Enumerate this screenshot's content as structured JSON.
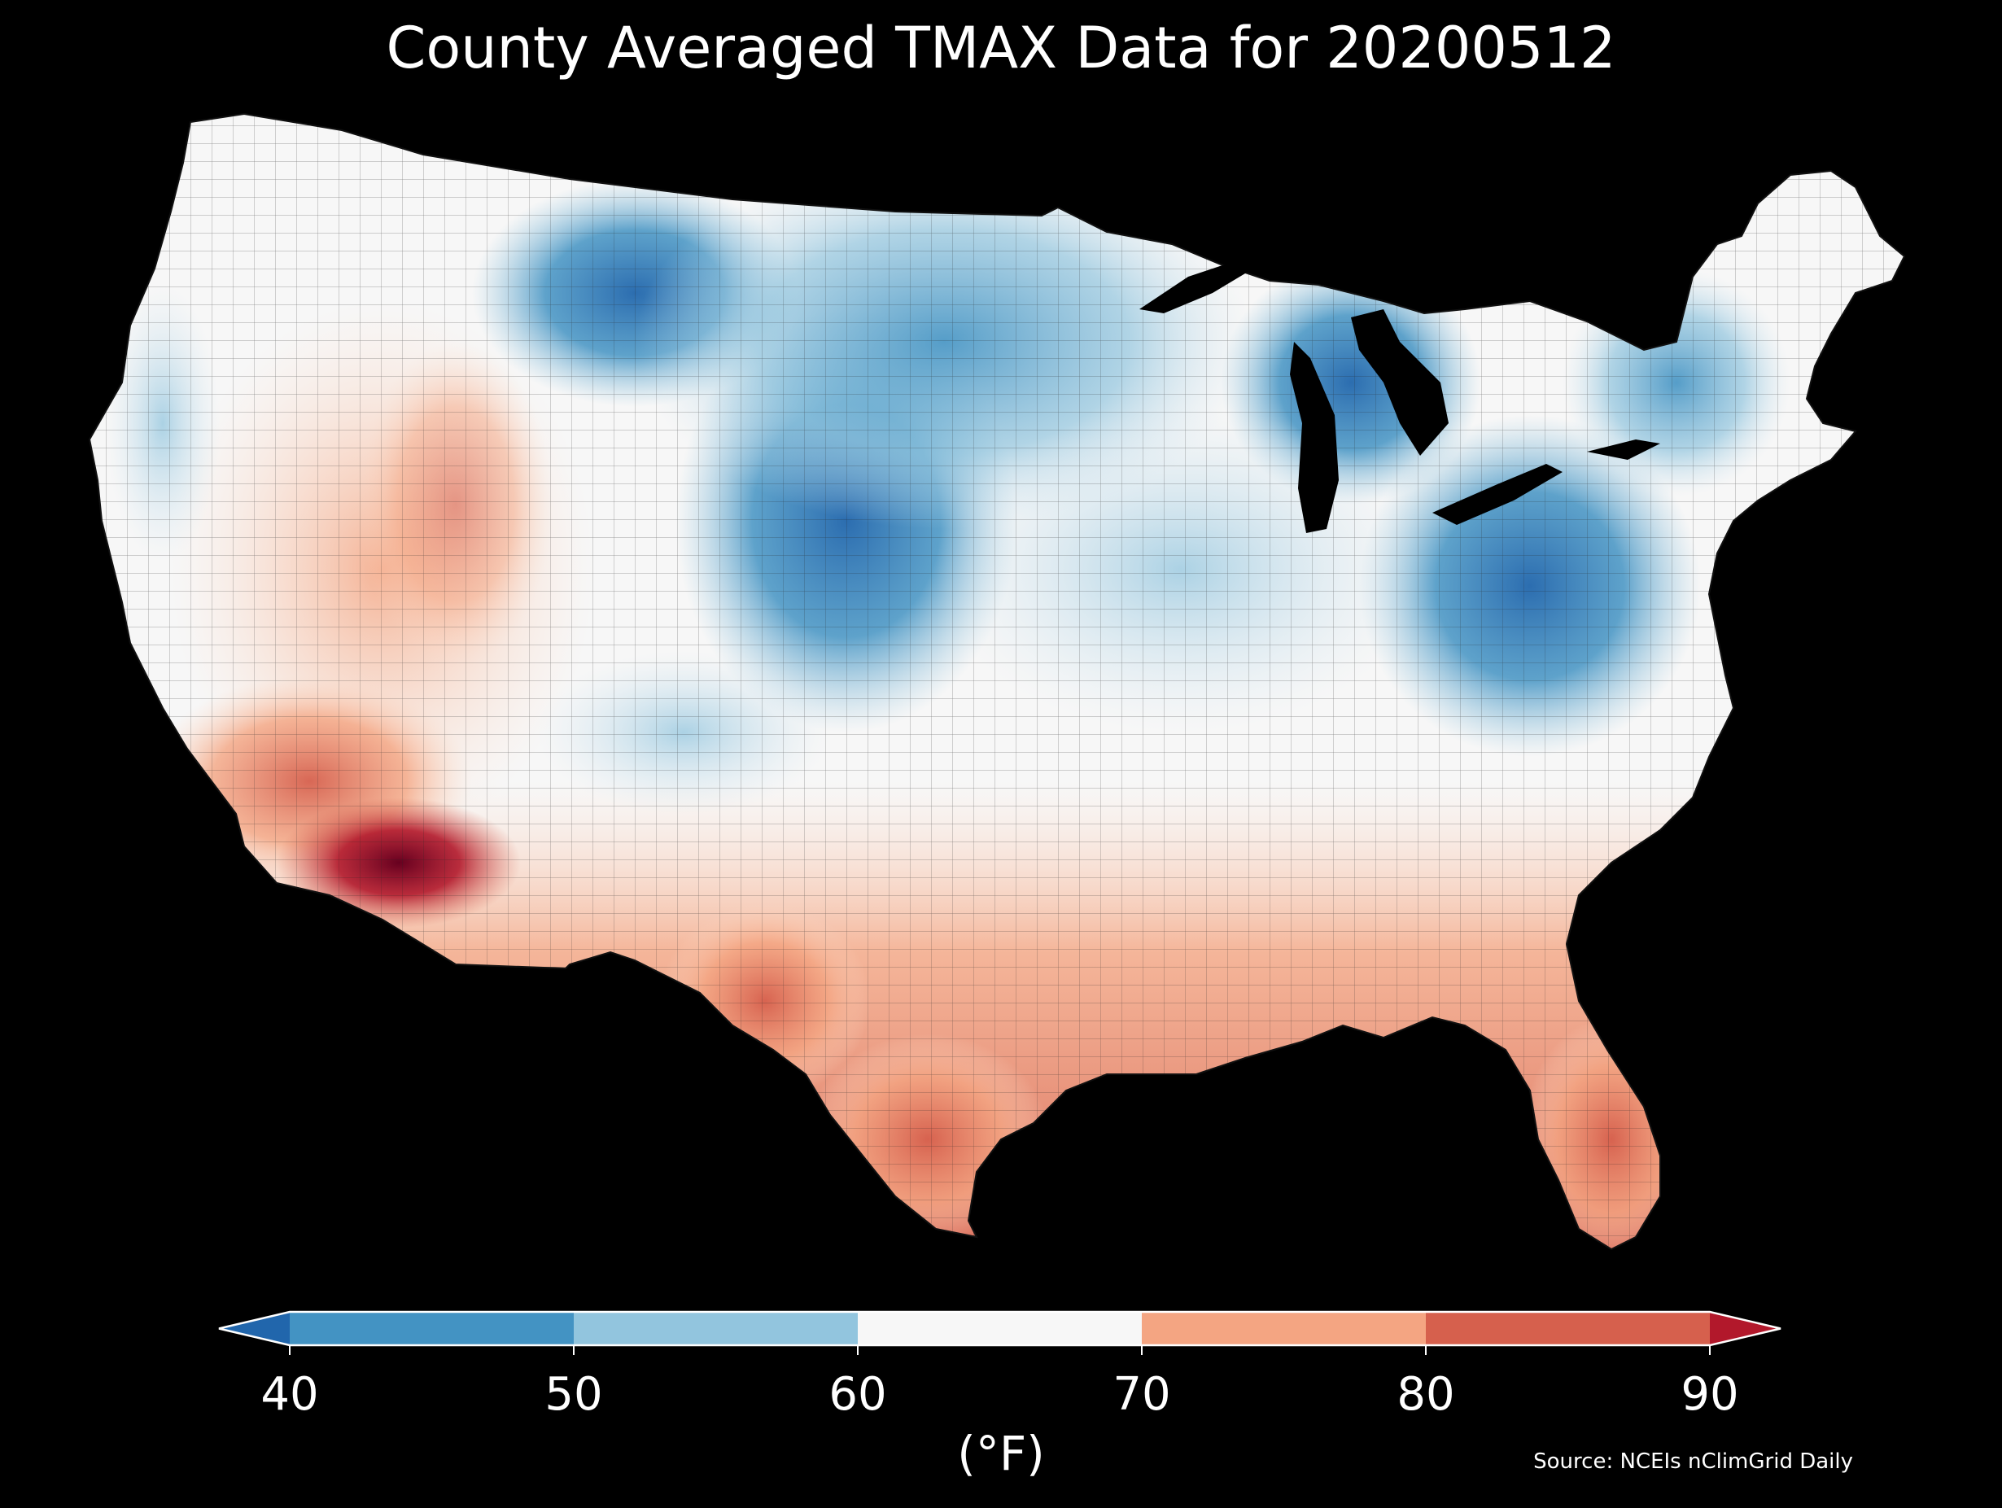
{
  "title": "County Averaged TMAX Data for 20200512",
  "colorbar": {
    "ticks": [
      "40",
      "50",
      "60",
      "70",
      "80",
      "90"
    ],
    "units": "(°F)",
    "bins": [
      {
        "from": "below",
        "to": 40,
        "color": "#2166ac"
      },
      {
        "from": 40,
        "to": 50,
        "color": "#4393c3"
      },
      {
        "from": 50,
        "to": 60,
        "color": "#92c5de"
      },
      {
        "from": 60,
        "to": 70,
        "color": "#f7f7f7"
      },
      {
        "from": 70,
        "to": 80,
        "color": "#f4a582"
      },
      {
        "from": 80,
        "to": 90,
        "color": "#d6604d"
      },
      {
        "from": 90,
        "to": "above",
        "color": "#b2182b"
      }
    ]
  },
  "source": "Source: NCEIs nClimGrid Daily",
  "map": {
    "region": "contiguous-united-states",
    "land_color": "#f7f7f7",
    "background_color": "#000000",
    "county_line_color": "#222222"
  }
}
